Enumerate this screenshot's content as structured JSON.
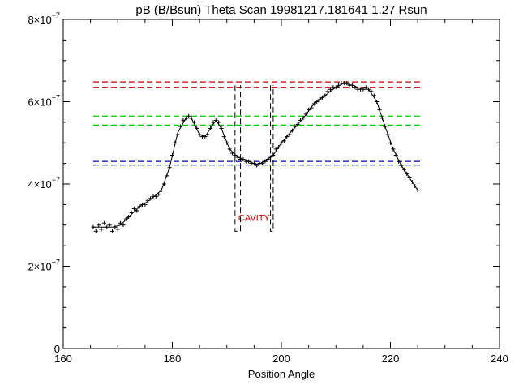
{
  "chart_data": {
    "type": "scatter",
    "title": "pB (B/Bsun) Theta Scan 19981217.181641 1.27 Rsun",
    "xlabel": "Position Angle",
    "ylabel": "",
    "xlim": [
      160,
      240
    ],
    "ylim": [
      0,
      8e-07
    ],
    "x_ticks": [
      160,
      180,
      200,
      220,
      240
    ],
    "x_minor_step": 5,
    "y_ticks": [
      {
        "value": 0,
        "label": "0"
      },
      {
        "value": 2e-07,
        "mantissa": "2",
        "base": "×10",
        "exp": "−7"
      },
      {
        "value": 4e-07,
        "mantissa": "4",
        "base": "×10",
        "exp": "−7"
      },
      {
        "value": 6e-07,
        "mantissa": "6",
        "base": "×10",
        "exp": "−7"
      },
      {
        "value": 8e-07,
        "mantissa": "8",
        "base": "×10",
        "exp": "−7"
      }
    ],
    "y_minor_step": 5e-08,
    "grid": false,
    "series": [
      {
        "style": "points",
        "marker": "+",
        "color": "#000000",
        "points": [
          [
            165.5,
            2.95e-07
          ],
          [
            166.0,
            2.85e-07
          ],
          [
            166.5,
            3e-07
          ],
          [
            167.0,
            2.9e-07
          ],
          [
            167.5,
            3.05e-07
          ],
          [
            168.0,
            2.95e-07
          ],
          [
            168.5,
            3e-07
          ],
          [
            169.0,
            2.85e-07
          ],
          [
            169.5,
            2.95e-07
          ],
          [
            170.0,
            2.9e-07
          ],
          [
            170.5,
            3.05e-07
          ],
          [
            171.0,
            3e-07
          ],
          [
            171.5,
            3.15e-07
          ],
          [
            172.0,
            3.2e-07
          ],
          [
            172.5,
            3.3e-07
          ],
          [
            173.0,
            3.4e-07
          ],
          [
            173.5,
            3.35e-07
          ],
          [
            174.0,
            3.45e-07
          ],
          [
            174.5,
            3.5e-07
          ],
          [
            175.0,
            3.5e-07
          ],
          [
            175.5,
            3.6e-07
          ],
          [
            176.0,
            3.65e-07
          ],
          [
            176.5,
            3.7e-07
          ],
          [
            177.0,
            3.7e-07
          ],
          [
            177.5,
            3.75e-07
          ],
          [
            178.0,
            3.85e-07
          ],
          [
            178.5,
            4e-07
          ],
          [
            179.0,
            4.2e-07
          ],
          [
            179.5,
            4.4e-07
          ],
          [
            180.0,
            4.7e-07
          ],
          [
            180.5,
            5e-07
          ],
          [
            181.0,
            5.2e-07
          ],
          [
            181.5,
            5.4e-07
          ],
          [
            182.0,
            5.55e-07
          ],
          [
            182.5,
            5.6e-07
          ],
          [
            183.0,
            5.65e-07
          ],
          [
            183.5,
            5.6e-07
          ],
          [
            184.0,
            5.5e-07
          ],
          [
            184.5,
            5.35e-07
          ],
          [
            185.0,
            5.2e-07
          ],
          [
            185.5,
            5.15e-07
          ],
          [
            186.0,
            5.15e-07
          ],
          [
            186.5,
            5.2e-07
          ],
          [
            187.0,
            5.35e-07
          ],
          [
            187.5,
            5.5e-07
          ],
          [
            188.0,
            5.55e-07
          ],
          [
            188.5,
            5.5e-07
          ],
          [
            189.0,
            5.35e-07
          ],
          [
            189.5,
            5.15e-07
          ],
          [
            190.0,
            5e-07
          ],
          [
            190.5,
            4.85e-07
          ],
          [
            191.0,
            4.75e-07
          ],
          [
            191.5,
            4.7e-07
          ],
          [
            192.0,
            4.65e-07
          ],
          [
            192.5,
            4.6e-07
          ],
          [
            193.0,
            4.6e-07
          ],
          [
            193.5,
            4.55e-07
          ],
          [
            194.0,
            4.55e-07
          ],
          [
            194.5,
            4.5e-07
          ],
          [
            195.0,
            4.5e-07
          ],
          [
            195.5,
            4.45e-07
          ],
          [
            196.0,
            4.5e-07
          ],
          [
            196.5,
            4.5e-07
          ],
          [
            197.0,
            4.55e-07
          ],
          [
            197.5,
            4.6e-07
          ],
          [
            198.0,
            4.65e-07
          ],
          [
            198.5,
            4.7e-07
          ],
          [
            199.0,
            4.85e-07
          ],
          [
            199.5,
            4.9e-07
          ],
          [
            200.0,
            5e-07
          ],
          [
            200.5,
            5.05e-07
          ],
          [
            201.0,
            5.15e-07
          ],
          [
            201.5,
            5.2e-07
          ],
          [
            202.0,
            5.3e-07
          ],
          [
            202.5,
            5.4e-07
          ],
          [
            203.0,
            5.45e-07
          ],
          [
            203.5,
            5.55e-07
          ],
          [
            204.0,
            5.6e-07
          ],
          [
            204.5,
            5.7e-07
          ],
          [
            205.0,
            5.8e-07
          ],
          [
            205.5,
            5.85e-07
          ],
          [
            206.0,
            5.95e-07
          ],
          [
            206.5,
            6e-07
          ],
          [
            207.0,
            6.05e-07
          ],
          [
            207.5,
            6.1e-07
          ],
          [
            208.0,
            6.15e-07
          ],
          [
            208.5,
            6.25e-07
          ],
          [
            209.0,
            6.3e-07
          ],
          [
            209.5,
            6.35e-07
          ],
          [
            210.0,
            6.35e-07
          ],
          [
            210.5,
            6.4e-07
          ],
          [
            211.0,
            6.45e-07
          ],
          [
            211.5,
            6.45e-07
          ],
          [
            212.0,
            6.45e-07
          ],
          [
            212.5,
            6.4e-07
          ],
          [
            213.0,
            6.4e-07
          ],
          [
            213.5,
            6.35e-07
          ],
          [
            214.0,
            6.3e-07
          ],
          [
            214.5,
            6.3e-07
          ],
          [
            215.0,
            6.3e-07
          ],
          [
            215.5,
            6.35e-07
          ],
          [
            216.0,
            6.3e-07
          ],
          [
            216.5,
            6.25e-07
          ],
          [
            217.0,
            6.15e-07
          ],
          [
            217.5,
            6e-07
          ],
          [
            218.0,
            5.8e-07
          ],
          [
            218.5,
            5.6e-07
          ],
          [
            219.0,
            5.4e-07
          ],
          [
            219.5,
            5.2e-07
          ],
          [
            220.0,
            5e-07
          ],
          [
            220.5,
            4.85e-07
          ],
          [
            221.0,
            4.7e-07
          ],
          [
            221.5,
            4.55e-07
          ],
          [
            222.0,
            4.45e-07
          ],
          [
            222.5,
            4.35e-07
          ],
          [
            223.0,
            4.25e-07
          ],
          [
            223.5,
            4.15e-07
          ],
          [
            224.0,
            4.05e-07
          ],
          [
            224.5,
            3.95e-07
          ],
          [
            225.0,
            3.85e-07
          ]
        ]
      },
      {
        "style": "line",
        "color": "#000000",
        "points": [
          [
            165.5,
            2.95e-07
          ],
          [
            167.0,
            2.95e-07
          ],
          [
            169.0,
            2.95e-07
          ],
          [
            170.5,
            3e-07
          ],
          [
            172.0,
            3.2e-07
          ],
          [
            174.0,
            3.45e-07
          ],
          [
            176.0,
            3.62e-07
          ],
          [
            178.0,
            3.85e-07
          ],
          [
            179.5,
            4.4e-07
          ],
          [
            181.0,
            5.25e-07
          ],
          [
            182.5,
            5.6e-07
          ],
          [
            183.5,
            5.6e-07
          ],
          [
            185.0,
            5.2e-07
          ],
          [
            186.0,
            5.15e-07
          ],
          [
            187.0,
            5.35e-07
          ],
          [
            188.0,
            5.55e-07
          ],
          [
            189.0,
            5.35e-07
          ],
          [
            190.5,
            4.85e-07
          ],
          [
            192.0,
            4.65e-07
          ],
          [
            194.0,
            4.55e-07
          ],
          [
            195.5,
            4.47e-07
          ],
          [
            197.0,
            4.55e-07
          ],
          [
            198.5,
            4.7e-07
          ],
          [
            200.0,
            5e-07
          ],
          [
            202.0,
            5.3e-07
          ],
          [
            204.0,
            5.6e-07
          ],
          [
            206.0,
            5.95e-07
          ],
          [
            208.0,
            6.15e-07
          ],
          [
            210.0,
            6.35e-07
          ],
          [
            211.5,
            6.45e-07
          ],
          [
            213.0,
            6.4e-07
          ],
          [
            215.0,
            6.3e-07
          ],
          [
            216.0,
            6.3e-07
          ],
          [
            217.5,
            6e-07
          ],
          [
            219.0,
            5.4e-07
          ],
          [
            220.5,
            4.85e-07
          ],
          [
            222.0,
            4.45e-07
          ],
          [
            223.5,
            4.15e-07
          ],
          [
            225.0,
            3.85e-07
          ]
        ]
      }
    ],
    "reference_lines": [
      {
        "y": 6.48e-07,
        "x1": 165.5,
        "x2": 225.5,
        "color": "#cc0000"
      },
      {
        "y": 6.35e-07,
        "x1": 165.5,
        "x2": 225.5,
        "color": "#cc0000"
      },
      {
        "y": 5.65e-07,
        "x1": 165.5,
        "x2": 225.5,
        "color": "#00cc00"
      },
      {
        "y": 5.43e-07,
        "x1": 165.5,
        "x2": 225.5,
        "color": "#00cc00"
      },
      {
        "y": 4.55e-07,
        "x1": 165.5,
        "x2": 225.5,
        "color": "#0000aa"
      },
      {
        "y": 4.46e-07,
        "x1": 165.5,
        "x2": 225.5,
        "color": "#0000aa"
      }
    ],
    "bracket_boxes": [
      {
        "x1": 191.5,
        "x2": 192.5,
        "y_bottom": 2.85e-07,
        "y_top": 6.4e-07,
        "color": "#000000"
      },
      {
        "x1": 198.0,
        "x2": 198.5,
        "y_bottom": 2.85e-07,
        "y_top": 6.4e-07,
        "color": "#000000"
      }
    ],
    "annotations": [
      {
        "text": "CAVITY",
        "x": 195.0,
        "y": 3.1e-07,
        "color": "#cc0000"
      }
    ]
  }
}
